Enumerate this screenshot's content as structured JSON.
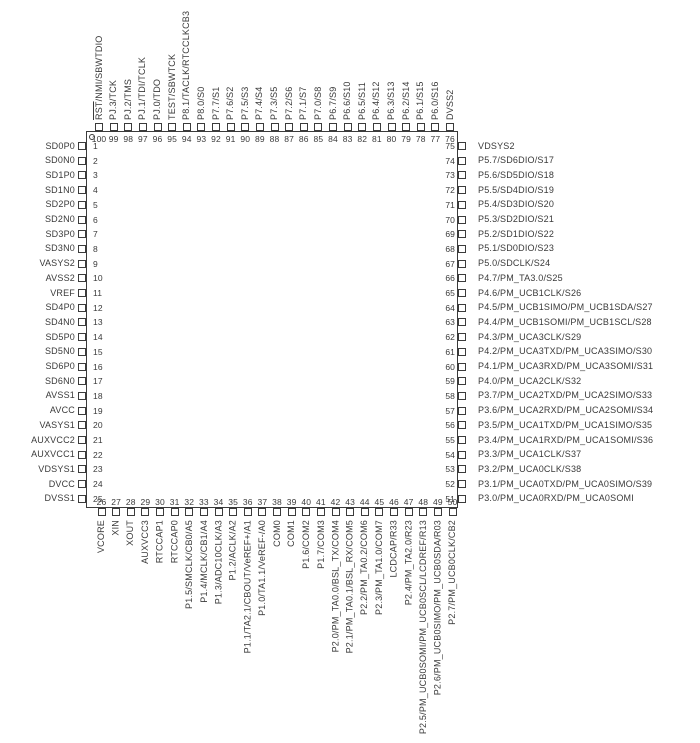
{
  "colors": {
    "ink": "#3a3a3a",
    "background": "#ffffff"
  },
  "chip": {
    "pin1_marker": "circle",
    "sides": {
      "top": [
        {
          "n": 100,
          "t": "RST/NMI/SBWTDIO",
          "ov": "RST"
        },
        {
          "n": 99,
          "t": "PJ.3/TCK"
        },
        {
          "n": 98,
          "t": "PJ.2/TMS"
        },
        {
          "n": 97,
          "t": "PJ.1/TDI/TCLK"
        },
        {
          "n": 96,
          "t": "PJ.0/TDO"
        },
        {
          "n": 95,
          "t": "TEST/SBWTCK"
        },
        {
          "n": 94,
          "t": "P8.1/TACLK/RTCCLKCB3"
        },
        {
          "n": 93,
          "t": "P8.0/S0"
        },
        {
          "n": 92,
          "t": "P7.7/S1"
        },
        {
          "n": 91,
          "t": "P7.6/S2"
        },
        {
          "n": 90,
          "t": "P7.5/S3"
        },
        {
          "n": 89,
          "t": "P7.4/S4"
        },
        {
          "n": 88,
          "t": "P7.3/S5"
        },
        {
          "n": 87,
          "t": "P7.2/S6"
        },
        {
          "n": 86,
          "t": "P7.1/S7"
        },
        {
          "n": 85,
          "t": "P7.0/S8"
        },
        {
          "n": 84,
          "t": "P6.7/S9"
        },
        {
          "n": 83,
          "t": "P6.6/S10"
        },
        {
          "n": 82,
          "t": "P6.5/S11"
        },
        {
          "n": 81,
          "t": "P6.4/S12"
        },
        {
          "n": 80,
          "t": "P6.3/S13"
        },
        {
          "n": 79,
          "t": "P6.2/S14"
        },
        {
          "n": 78,
          "t": "P6.1/S15"
        },
        {
          "n": 77,
          "t": "P6.0/S16"
        },
        {
          "n": 76,
          "t": "DVSS2"
        }
      ],
      "left": [
        {
          "n": 1,
          "t": "SD0P0"
        },
        {
          "n": 2,
          "t": "SD0N0"
        },
        {
          "n": 3,
          "t": "SD1P0"
        },
        {
          "n": 4,
          "t": "SD1N0"
        },
        {
          "n": 5,
          "t": "SD2P0"
        },
        {
          "n": 6,
          "t": "SD2N0"
        },
        {
          "n": 7,
          "t": "SD3P0"
        },
        {
          "n": 8,
          "t": "SD3N0"
        },
        {
          "n": 9,
          "t": "VASYS2"
        },
        {
          "n": 10,
          "t": "AVSS2"
        },
        {
          "n": 11,
          "t": "VREF"
        },
        {
          "n": 12,
          "t": "SD4P0"
        },
        {
          "n": 13,
          "t": "SD4N0"
        },
        {
          "n": 14,
          "t": "SD5P0"
        },
        {
          "n": 15,
          "t": "SD5N0"
        },
        {
          "n": 16,
          "t": "SD6P0"
        },
        {
          "n": 17,
          "t": "SD6N0"
        },
        {
          "n": 18,
          "t": "AVSS1"
        },
        {
          "n": 19,
          "t": "AVCC"
        },
        {
          "n": 20,
          "t": "VASYS1"
        },
        {
          "n": 21,
          "t": "AUXVCC2"
        },
        {
          "n": 22,
          "t": "AUXVCC1"
        },
        {
          "n": 23,
          "t": "VDSYS1"
        },
        {
          "n": 24,
          "t": "DVCC"
        },
        {
          "n": 25,
          "t": "DVSS1"
        }
      ],
      "right": [
        {
          "n": 75,
          "t": "VDSYS2"
        },
        {
          "n": 74,
          "t": "P5.7/SD6DIO/S17"
        },
        {
          "n": 73,
          "t": "P5.6/SD5DIO/S18"
        },
        {
          "n": 72,
          "t": "P5.5/SD4DIO/S19"
        },
        {
          "n": 71,
          "t": "P5.4/SD3DIO/S20"
        },
        {
          "n": 70,
          "t": "P5.3/SD2DIO/S21"
        },
        {
          "n": 69,
          "t": "P5.2/SD1DIO/S22"
        },
        {
          "n": 68,
          "t": "P5.1/SD0DIO/S23"
        },
        {
          "n": 67,
          "t": "P5.0/SDCLK/S24"
        },
        {
          "n": 66,
          "t": "P4.7/PM_TA3.0/S25"
        },
        {
          "n": 65,
          "t": "P4.6/PM_UCB1CLK/S26"
        },
        {
          "n": 64,
          "t": "P4.5/PM_UCB1SIMO/PM_UCB1SDA/S27"
        },
        {
          "n": 63,
          "t": "P4.4/PM_UCB1SOMI/PM_UCB1SCL/S28"
        },
        {
          "n": 62,
          "t": "P4.3/PM_UCA3CLK/S29"
        },
        {
          "n": 61,
          "t": "P4.2/PM_UCA3TXD/PM_UCA3SIMO/S30"
        },
        {
          "n": 60,
          "t": "P4.1/PM_UCA3RXD/PM_UCA3SOMI/S31"
        },
        {
          "n": 59,
          "t": "P4.0/PM_UCA2CLK/S32"
        },
        {
          "n": 58,
          "t": "P3.7/PM_UCA2TXD/PM_UCA2SIMO/S33"
        },
        {
          "n": 57,
          "t": "P3.6/PM_UCA2RXD/PM_UCA2SOMI/S34"
        },
        {
          "n": 56,
          "t": "P3.5/PM_UCA1TXD/PM_UCA1SIMO/S35"
        },
        {
          "n": 55,
          "t": "P3.4/PM_UCA1RXD/PM_UCA1SOMI/S36"
        },
        {
          "n": 54,
          "t": "P3.3/PM_UCA1CLK/S37"
        },
        {
          "n": 53,
          "t": "P3.2/PM_UCA0CLK/S38"
        },
        {
          "n": 52,
          "t": "P3.1/PM_UCA0TXD/PM_UCA0SIMO/S39"
        },
        {
          "n": 51,
          "t": "P3.0/PM_UCA0RXD/PM_UCA0SOMI"
        }
      ],
      "bottom": [
        {
          "n": 26,
          "t": "VCORE"
        },
        {
          "n": 27,
          "t": "XIN"
        },
        {
          "n": 28,
          "t": "XOUT"
        },
        {
          "n": 29,
          "t": "AUXVCC3"
        },
        {
          "n": 30,
          "t": "RTCCAP1"
        },
        {
          "n": 31,
          "t": "RTCCAP0"
        },
        {
          "n": 32,
          "t": "P1.5/SMCLK/CB0/A5"
        },
        {
          "n": 33,
          "t": "P1.4/MCLK/CB1/A4"
        },
        {
          "n": 34,
          "t": "P1.3/ADC10CLK/A3"
        },
        {
          "n": 35,
          "t": "P1.2/ACLK/A2"
        },
        {
          "n": 36,
          "t": "P1.1/TA2.1/CBOUT/VeREF+/A1"
        },
        {
          "n": 37,
          "t": "P1.0/TA1.1/VeREF-/A0"
        },
        {
          "n": 38,
          "t": "COM0"
        },
        {
          "n": 39,
          "t": "COM1"
        },
        {
          "n": 40,
          "t": "P1.6/COM2"
        },
        {
          "n": 41,
          "t": "P1.7/COM3"
        },
        {
          "n": 42,
          "t": "P2.0/PM_TA0.0/BSL_TX/COM4"
        },
        {
          "n": 43,
          "t": "P2.1/PM_TA0.1/BSL_RX/COM5"
        },
        {
          "n": 44,
          "t": "P2.2/PM_TA0.2/COM6"
        },
        {
          "n": 45,
          "t": "P2.3/PM_TA1.0/COM7"
        },
        {
          "n": 46,
          "t": "LCDCAP/R33"
        },
        {
          "n": 47,
          "t": "P2.4/PM_TA2.0/R23"
        },
        {
          "n": 48,
          "t": "P2.5/PM_UCB0SOMI/PM_UCB0SCL/LCDREF/R13"
        },
        {
          "n": 49,
          "t": "P2.6/PM_UCB0SIMO/PM_UCB0SDA/R03"
        },
        {
          "n": 50,
          "t": "P2.7/PM_UCB0CLK/CB2"
        }
      ]
    }
  }
}
